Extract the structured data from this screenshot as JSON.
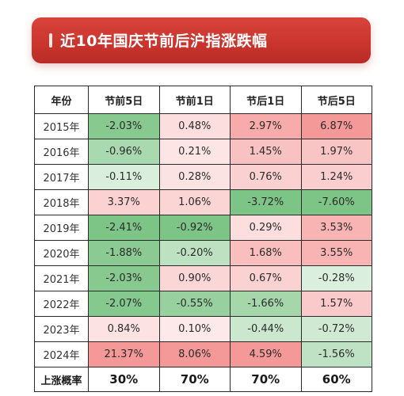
{
  "title": "近10年国庆节前后沪指涨跌幅",
  "table": {
    "headers": [
      "年份",
      "节前5日",
      "节前1日",
      "节后1日",
      "节后5日"
    ],
    "rows": [
      {
        "year": "2015年",
        "values": [
          "-2.03%",
          "0.48%",
          "2.97%",
          "6.87%"
        ]
      },
      {
        "year": "2016年",
        "values": [
          "-0.96%",
          "0.21%",
          "1.45%",
          "1.97%"
        ]
      },
      {
        "year": "2017年",
        "values": [
          "-0.11%",
          "0.28%",
          "0.76%",
          "1.24%"
        ]
      },
      {
        "year": "2018年",
        "values": [
          "3.37%",
          "1.06%",
          "-3.72%",
          "-7.60%"
        ]
      },
      {
        "year": "2019年",
        "values": [
          "-2.41%",
          "-0.92%",
          "0.29%",
          "3.53%"
        ]
      },
      {
        "year": "2020年",
        "values": [
          "-1.88%",
          "-0.20%",
          "1.68%",
          "3.55%"
        ]
      },
      {
        "year": "2021年",
        "values": [
          "-2.03%",
          "0.90%",
          "0.67%",
          "-0.28%"
        ]
      },
      {
        "year": "2022年",
        "values": [
          "-2.07%",
          "-0.55%",
          "-1.66%",
          "1.57%"
        ]
      },
      {
        "year": "2023年",
        "values": [
          "0.84%",
          "0.10%",
          "-0.44%",
          "-0.72%"
        ]
      },
      {
        "year": "2024年",
        "values": [
          "21.37%",
          "8.06%",
          "4.59%",
          "-1.56%"
        ]
      }
    ],
    "footer": {
      "label": "上涨概率",
      "values": [
        "30%",
        "70%",
        "70%",
        "60%"
      ]
    }
  },
  "colors": {
    "banner": "#c9342d",
    "positive_scale": "#f4a6a4",
    "negative_scale": "#5cbd74"
  }
}
